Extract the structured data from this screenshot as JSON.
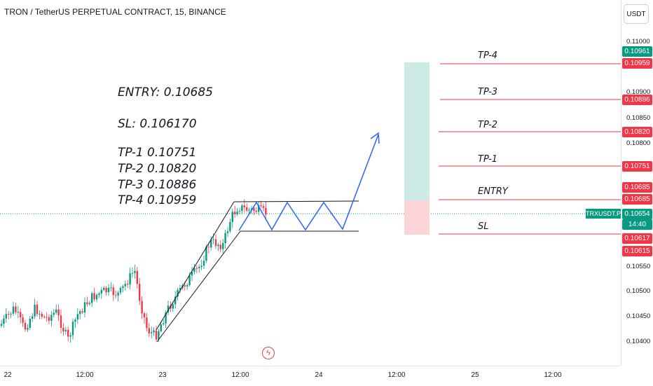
{
  "header": {
    "title": "TRON / TetherUS PERPETUAL CONTRACT, 15, BINANCE",
    "currency": "USDT"
  },
  "notes": {
    "entry": "ENTRY: 0.10685",
    "sl": "SL: 0.106170",
    "tp1": "TP-1 0.10751",
    "tp2": "TP-2 0.10820",
    "tp3": "TP-3 0.10886",
    "tp4": "TP-4 0.10959"
  },
  "levels": {
    "tp4": "TP-4",
    "tp3": "TP-3",
    "tp2": "TP-2",
    "tp1": "TP-1",
    "entry": "ENTRY",
    "sl": "SL"
  },
  "price_axis": {
    "ticks": [
      "0.11000",
      "0.10900",
      "0.10850",
      "0.10800",
      "0.10550",
      "0.10500",
      "0.10450",
      "0.10400"
    ],
    "tags": {
      "t10961": "0.10961",
      "t10959": "0.10959",
      "t10886": "0.10886",
      "t10820": "0.10820",
      "t10751": "0.10751",
      "t10685a": "0.10685",
      "t10685b": "0.10685",
      "t10654": "0.10654",
      "countdown": "14:40",
      "t10617": "0.10617",
      "t10615": "0.10615"
    },
    "symbol_tag": "TRXUSDT.P"
  },
  "time_axis": {
    "ticks": [
      "22",
      "12:00",
      "23",
      "12:00",
      "24",
      "12:00",
      "25",
      "12:00"
    ]
  },
  "colors": {
    "up": "#089981",
    "down": "#f23645",
    "projection": "#2962ff",
    "target_zone": "#cdebe5",
    "stop_zone": "#fcd5d8"
  },
  "icons": {
    "flash": "lightning-icon"
  },
  "flash_glyph": "ϟ"
}
